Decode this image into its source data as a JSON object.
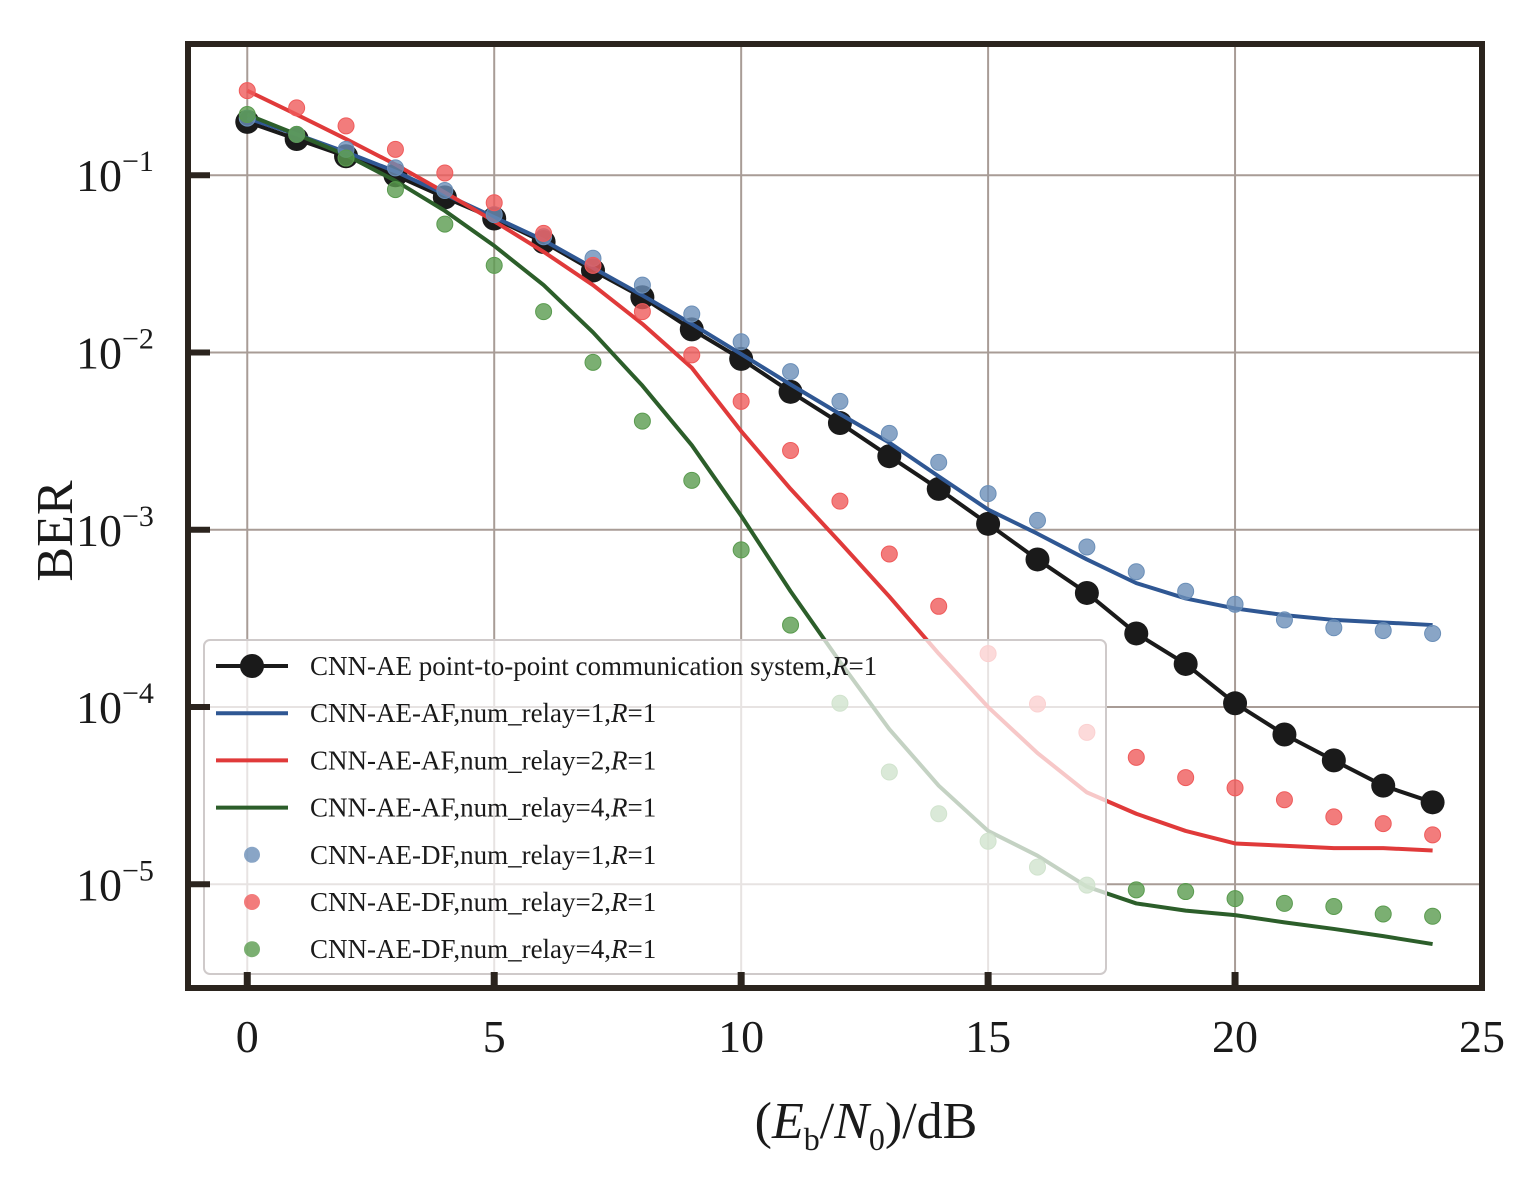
{
  "chart_data": {
    "type": "line",
    "xlabel": {
      "open": "(",
      "E": "E",
      "b": "b",
      "slash": "/",
      "N": "N",
      "zero": "0",
      "close": ")/dB"
    },
    "ylabel": "BER",
    "xlim": [
      -1.2,
      25
    ],
    "ylim": [
      2.6e-06,
      0.55
    ],
    "yscale": "log",
    "grid": true,
    "legend_position": "lower-left",
    "x_ticks": [
      {
        "value": 0,
        "label": "0"
      },
      {
        "value": 5,
        "label": "5"
      },
      {
        "value": 10,
        "label": "10"
      },
      {
        "value": 15,
        "label": "15"
      },
      {
        "value": 20,
        "label": "20"
      },
      {
        "value": 25,
        "label": "25"
      }
    ],
    "y_ticks": [
      {
        "value": 0.1,
        "base": "10",
        "exp": "−1"
      },
      {
        "value": 0.01,
        "base": "10",
        "exp": "−2"
      },
      {
        "value": 0.001,
        "base": "10",
        "exp": "−3"
      },
      {
        "value": 0.0001,
        "base": "10",
        "exp": "−4"
      },
      {
        "value": 1e-05,
        "base": "10",
        "exp": "−5"
      }
    ],
    "x": [
      0,
      1,
      2,
      3,
      4,
      5,
      6,
      7,
      8,
      9,
      10,
      11,
      12,
      13,
      14,
      15,
      16,
      17,
      18,
      19,
      20,
      21,
      22,
      23,
      24
    ],
    "series": [
      {
        "name": "CNN-AE point-to-point communication system,",
        "suffix": "=1",
        "style": "line-marker",
        "color": "#1a1a1a",
        "values": [
          0.2,
          0.16,
          0.128,
          0.1,
          0.075,
          0.057,
          0.042,
          0.029,
          0.0205,
          0.0135,
          0.0092,
          0.006,
          0.004,
          0.0026,
          0.0017,
          0.00108,
          0.00068,
          0.00044,
          0.00026,
          0.000175,
          0.000105,
          7e-05,
          5e-05,
          3.6e-05,
          2.9e-05
        ]
      },
      {
        "name": "CNN-AE-AF,num_relay=1,",
        "suffix": "=1",
        "style": "line",
        "color": "#2f5793",
        "values": [
          0.21,
          0.17,
          0.135,
          0.105,
          0.078,
          0.058,
          0.043,
          0.03,
          0.021,
          0.0145,
          0.0098,
          0.0066,
          0.0045,
          0.0031,
          0.002,
          0.0013,
          0.00095,
          0.00068,
          0.0005,
          0.00041,
          0.00036,
          0.00033,
          0.00031,
          0.0003,
          0.00029
        ]
      },
      {
        "name": "CNN-AE-AF,num_relay=2,",
        "suffix": "=1",
        "style": "line",
        "color": "#e03a3a",
        "values": [
          0.3,
          0.22,
          0.16,
          0.115,
          0.08,
          0.055,
          0.037,
          0.024,
          0.0145,
          0.0082,
          0.0036,
          0.0017,
          0.00085,
          0.00042,
          0.0002,
          0.0001,
          5.5e-05,
          3.3e-05,
          2.5e-05,
          2e-05,
          1.7e-05,
          1.65e-05,
          1.6e-05,
          1.6e-05,
          1.55e-05
        ]
      },
      {
        "name": "CNN-AE-AF,num_relay=4,",
        "suffix": "=1",
        "style": "line",
        "color": "#2c5e2a",
        "values": [
          0.22,
          0.17,
          0.13,
          0.093,
          0.063,
          0.04,
          0.024,
          0.013,
          0.0065,
          0.003,
          0.0012,
          0.00045,
          0.00018,
          7.5e-05,
          3.6e-05,
          2e-05,
          1.45e-05,
          9.7e-06,
          7.8e-06,
          7.1e-06,
          6.7e-06,
          6.1e-06,
          5.6e-06,
          5.1e-06,
          4.6e-06
        ]
      },
      {
        "name": "CNN-AE-DF,num_relay=1,",
        "suffix": "=1",
        "style": "marker",
        "color": "#6b8fb8",
        "values": [
          0.21,
          0.17,
          0.14,
          0.11,
          0.082,
          0.06,
          0.045,
          0.034,
          0.024,
          0.0165,
          0.0115,
          0.0078,
          0.0053,
          0.0035,
          0.0024,
          0.0016,
          0.00113,
          0.0008,
          0.00058,
          0.00045,
          0.00038,
          0.00031,
          0.00028,
          0.00027,
          0.00026
        ]
      },
      {
        "name": "CNN-AE-DF,num_relay=2,",
        "suffix": "=1",
        "style": "marker",
        "color": "#ef5b5b",
        "values": [
          0.3,
          0.24,
          0.19,
          0.14,
          0.103,
          0.07,
          0.047,
          0.031,
          0.017,
          0.0097,
          0.0053,
          0.0028,
          0.00145,
          0.00073,
          0.00037,
          0.0002,
          0.000104,
          7.2e-05,
          5.2e-05,
          4e-05,
          3.5e-05,
          3e-05,
          2.4e-05,
          2.2e-05,
          1.9e-05
        ]
      },
      {
        "name": "CNN-AE-DF,num_relay=4,",
        "suffix": "=1",
        "style": "marker",
        "color": "#5a9b4f",
        "values": [
          0.22,
          0.17,
          0.125,
          0.083,
          0.053,
          0.031,
          0.017,
          0.0088,
          0.0041,
          0.0019,
          0.00077,
          0.00029,
          0.000105,
          4.3e-05,
          2.5e-05,
          1.75e-05,
          1.25e-05,
          9.9e-06,
          9.3e-06,
          9.1e-06,
          8.3e-06,
          7.8e-06,
          7.5e-06,
          6.8e-06,
          6.6e-06
        ]
      }
    ],
    "legend_italic": "R"
  }
}
